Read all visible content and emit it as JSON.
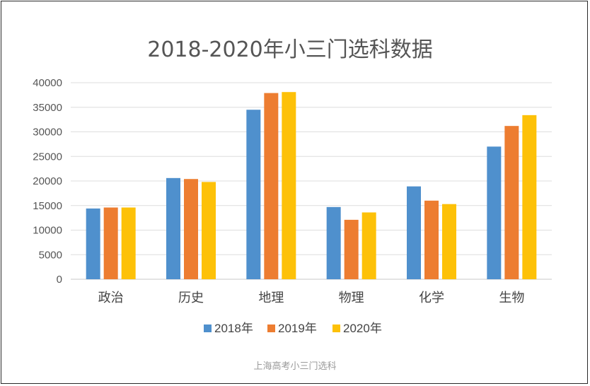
{
  "caption": "上海高考小三门选科",
  "chart_data": {
    "type": "bar",
    "title": "2018-2020年小三门选科数据",
    "xlabel": "",
    "ylabel": "",
    "categories": [
      "政治",
      "历史",
      "地理",
      "物理",
      "化学",
      "生物"
    ],
    "series": [
      {
        "name": "2018年",
        "color": "#4f90cd",
        "values": [
          14400,
          20600,
          34500,
          14700,
          18900,
          27000
        ]
      },
      {
        "name": "2019年",
        "color": "#ed7d31",
        "values": [
          14600,
          20400,
          37900,
          12100,
          16000,
          31200
        ]
      },
      {
        "name": "2020年",
        "color": "#fdc108",
        "values": [
          14600,
          19800,
          38100,
          13600,
          15300,
          33400
        ]
      }
    ],
    "ylim": [
      0,
      40000
    ],
    "yticks": [
      0,
      5000,
      10000,
      15000,
      20000,
      25000,
      30000,
      35000,
      40000
    ],
    "grid": true,
    "legend_position": "bottom"
  }
}
